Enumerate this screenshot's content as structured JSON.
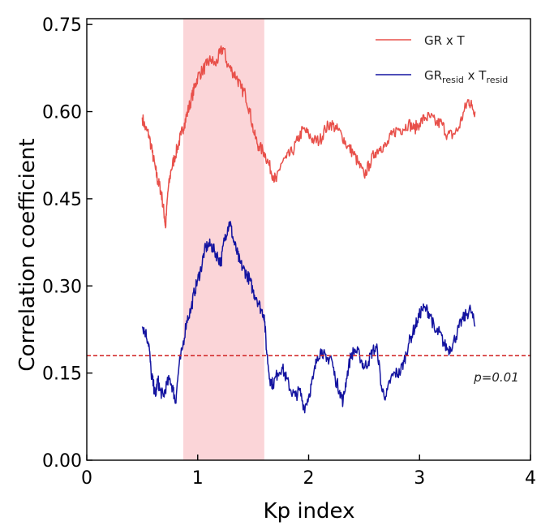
{
  "chart_data": {
    "type": "line",
    "title": "",
    "xlabel": "Kp index",
    "ylabel": "Correlation coefficient",
    "xlim": [
      0,
      4
    ],
    "ylim": [
      0,
      0.76
    ],
    "xticks": [
      0,
      1,
      2,
      3,
      4
    ],
    "xtick_labels": [
      "0",
      "1",
      "2",
      "3",
      "4"
    ],
    "yticks": [
      0,
      0.15,
      0.3,
      0.45,
      0.6,
      0.75
    ],
    "ytick_labels": [
      "0.00",
      "0.15",
      "0.30",
      "0.45",
      "0.60",
      "0.75"
    ],
    "grid": false,
    "legend_position": "top-right",
    "shaded_region": {
      "x0": 0.87,
      "x1": 1.6,
      "color": "#fbd5d8"
    },
    "threshold": {
      "y": 0.18,
      "label": "p=0.01",
      "color": "#d32f2f"
    },
    "series": [
      {
        "name": "GR x T",
        "legend_main": "GR x T",
        "color": "#e8504a",
        "points": [
          [
            0.5,
            0.59
          ],
          [
            0.53,
            0.57
          ],
          [
            0.56,
            0.56
          ],
          [
            0.59,
            0.53
          ],
          [
            0.62,
            0.5
          ],
          [
            0.64,
            0.48
          ],
          [
            0.66,
            0.47
          ],
          [
            0.68,
            0.45
          ],
          [
            0.7,
            0.42
          ],
          [
            0.71,
            0.4
          ],
          [
            0.73,
            0.46
          ],
          [
            0.76,
            0.5
          ],
          [
            0.79,
            0.52
          ],
          [
            0.82,
            0.54
          ],
          [
            0.85,
            0.56
          ],
          [
            0.88,
            0.58
          ],
          [
            0.91,
            0.6
          ],
          [
            0.94,
            0.62
          ],
          [
            0.97,
            0.64
          ],
          [
            1.0,
            0.66
          ],
          [
            1.04,
            0.67
          ],
          [
            1.08,
            0.68
          ],
          [
            1.12,
            0.69
          ],
          [
            1.16,
            0.68
          ],
          [
            1.2,
            0.7
          ],
          [
            1.23,
            0.71
          ],
          [
            1.27,
            0.68
          ],
          [
            1.31,
            0.67
          ],
          [
            1.35,
            0.66
          ],
          [
            1.39,
            0.64
          ],
          [
            1.43,
            0.63
          ],
          [
            1.47,
            0.6
          ],
          [
            1.51,
            0.56
          ],
          [
            1.55,
            0.54
          ],
          [
            1.6,
            0.53
          ],
          [
            1.64,
            0.51
          ],
          [
            1.68,
            0.49
          ],
          [
            1.71,
            0.48
          ],
          [
            1.75,
            0.51
          ],
          [
            1.8,
            0.52
          ],
          [
            1.85,
            0.53
          ],
          [
            1.9,
            0.55
          ],
          [
            1.95,
            0.57
          ],
          [
            2.0,
            0.56
          ],
          [
            2.05,
            0.55
          ],
          [
            2.1,
            0.55
          ],
          [
            2.15,
            0.57
          ],
          [
            2.2,
            0.58
          ],
          [
            2.25,
            0.57
          ],
          [
            2.3,
            0.56
          ],
          [
            2.35,
            0.54
          ],
          [
            2.4,
            0.53
          ],
          [
            2.45,
            0.51
          ],
          [
            2.5,
            0.49
          ],
          [
            2.55,
            0.51
          ],
          [
            2.6,
            0.53
          ],
          [
            2.65,
            0.54
          ],
          [
            2.7,
            0.54
          ],
          [
            2.75,
            0.56
          ],
          [
            2.8,
            0.57
          ],
          [
            2.85,
            0.57
          ],
          [
            2.9,
            0.58
          ],
          [
            2.95,
            0.57
          ],
          [
            3.0,
            0.58
          ],
          [
            3.05,
            0.59
          ],
          [
            3.1,
            0.59
          ],
          [
            3.15,
            0.58
          ],
          [
            3.2,
            0.58
          ],
          [
            3.25,
            0.56
          ],
          [
            3.3,
            0.56
          ],
          [
            3.35,
            0.57
          ],
          [
            3.4,
            0.6
          ],
          [
            3.44,
            0.62
          ],
          [
            3.47,
            0.61
          ],
          [
            3.5,
            0.6
          ]
        ]
      },
      {
        "name": "GRresid x Tresid",
        "legend_main": "GR",
        "legend_sub1": "resid",
        "legend_mid": " x T",
        "legend_sub2": "resid",
        "color": "#1414a0",
        "points": [
          [
            0.5,
            0.23
          ],
          [
            0.53,
            0.22
          ],
          [
            0.56,
            0.2
          ],
          [
            0.58,
            0.15
          ],
          [
            0.6,
            0.13
          ],
          [
            0.62,
            0.11
          ],
          [
            0.64,
            0.14
          ],
          [
            0.66,
            0.12
          ],
          [
            0.69,
            0.11
          ],
          [
            0.72,
            0.13
          ],
          [
            0.75,
            0.14
          ],
          [
            0.78,
            0.12
          ],
          [
            0.8,
            0.1
          ],
          [
            0.83,
            0.16
          ],
          [
            0.86,
            0.19
          ],
          [
            0.9,
            0.24
          ],
          [
            0.94,
            0.26
          ],
          [
            0.97,
            0.29
          ],
          [
            1.0,
            0.31
          ],
          [
            1.03,
            0.33
          ],
          [
            1.06,
            0.36
          ],
          [
            1.09,
            0.37
          ],
          [
            1.12,
            0.37
          ],
          [
            1.15,
            0.36
          ],
          [
            1.18,
            0.35
          ],
          [
            1.21,
            0.34
          ],
          [
            1.24,
            0.38
          ],
          [
            1.27,
            0.4
          ],
          [
            1.29,
            0.41
          ],
          [
            1.32,
            0.38
          ],
          [
            1.35,
            0.36
          ],
          [
            1.38,
            0.34
          ],
          [
            1.41,
            0.33
          ],
          [
            1.44,
            0.32
          ],
          [
            1.47,
            0.31
          ],
          [
            1.5,
            0.29
          ],
          [
            1.53,
            0.28
          ],
          [
            1.57,
            0.26
          ],
          [
            1.6,
            0.25
          ],
          [
            1.62,
            0.19
          ],
          [
            1.65,
            0.14
          ],
          [
            1.68,
            0.13
          ],
          [
            1.72,
            0.15
          ],
          [
            1.76,
            0.16
          ],
          [
            1.8,
            0.14
          ],
          [
            1.84,
            0.12
          ],
          [
            1.88,
            0.11
          ],
          [
            1.92,
            0.12
          ],
          [
            1.96,
            0.09
          ],
          [
            2.0,
            0.11
          ],
          [
            2.04,
            0.14
          ],
          [
            2.08,
            0.18
          ],
          [
            2.12,
            0.19
          ],
          [
            2.16,
            0.17
          ],
          [
            2.2,
            0.18
          ],
          [
            2.24,
            0.14
          ],
          [
            2.28,
            0.12
          ],
          [
            2.31,
            0.1
          ],
          [
            2.34,
            0.14
          ],
          [
            2.38,
            0.18
          ],
          [
            2.42,
            0.19
          ],
          [
            2.46,
            0.18
          ],
          [
            2.5,
            0.16
          ],
          [
            2.54,
            0.17
          ],
          [
            2.58,
            0.19
          ],
          [
            2.62,
            0.19
          ],
          [
            2.66,
            0.12
          ],
          [
            2.7,
            0.11
          ],
          [
            2.74,
            0.14
          ],
          [
            2.78,
            0.15
          ],
          [
            2.82,
            0.15
          ],
          [
            2.86,
            0.17
          ],
          [
            2.9,
            0.2
          ],
          [
            2.94,
            0.22
          ],
          [
            2.98,
            0.24
          ],
          [
            3.02,
            0.26
          ],
          [
            3.06,
            0.26
          ],
          [
            3.1,
            0.25
          ],
          [
            3.14,
            0.22
          ],
          [
            3.18,
            0.22
          ],
          [
            3.22,
            0.2
          ],
          [
            3.26,
            0.19
          ],
          [
            3.3,
            0.2
          ],
          [
            3.34,
            0.22
          ],
          [
            3.38,
            0.24
          ],
          [
            3.42,
            0.25
          ],
          [
            3.46,
            0.26
          ],
          [
            3.5,
            0.23
          ]
        ]
      }
    ]
  }
}
